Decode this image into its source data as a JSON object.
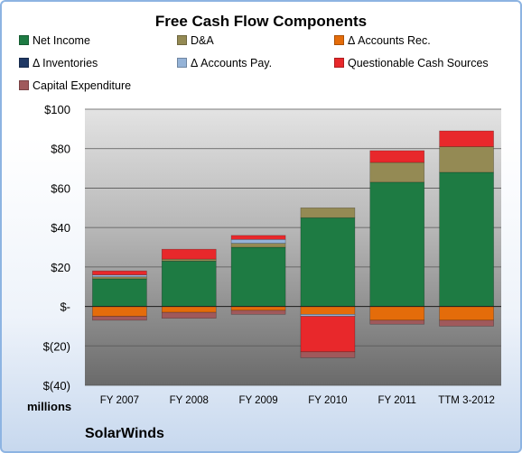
{
  "chart_data": {
    "type": "bar",
    "title": "Free Cash Flow Components",
    "categories": [
      "FY 2007",
      "FY 2008",
      "FY 2009",
      "FY 2010",
      "FY 2011",
      "TTM 3-2012"
    ],
    "series": [
      {
        "name": "Net Income",
        "color": "#1e7b43",
        "values": [
          14,
          23,
          30,
          45,
          63,
          68
        ]
      },
      {
        "name": "D&A",
        "color": "#948a54",
        "values": [
          1,
          1,
          2,
          5,
          10,
          13
        ]
      },
      {
        "name": "Δ Accounts Rec.",
        "color": "#e46c0a",
        "values": [
          -5,
          -3,
          -2,
          -4,
          -7,
          -7
        ]
      },
      {
        "name": "Δ Inventories",
        "color": "#1f3864",
        "values": [
          0,
          0,
          0,
          0,
          0,
          0
        ]
      },
      {
        "name": "Δ Accounts Pay.",
        "color": "#95b3d7",
        "values": [
          1,
          0,
          2,
          -1,
          0,
          0
        ]
      },
      {
        "name": "Questionable Cash Sources",
        "color": "#e8282b",
        "values": [
          2,
          5,
          2,
          -18,
          6,
          8
        ]
      },
      {
        "name": "Capital Expenditure",
        "color": "#a0595b",
        "values": [
          -2,
          -3,
          -2,
          -3,
          -2,
          -3
        ]
      }
    ],
    "ylim": [
      -40,
      100
    ],
    "yticks": [
      "$(40)",
      "$(20)",
      "$-",
      "$20",
      "$40",
      "$60",
      "$80",
      "$100"
    ],
    "ytick_values": [
      -40,
      -20,
      0,
      20,
      40,
      60,
      80,
      100
    ],
    "yunit": "millions",
    "grid": true,
    "legend": "top"
  },
  "footer": {
    "company": "SolarWinds"
  }
}
